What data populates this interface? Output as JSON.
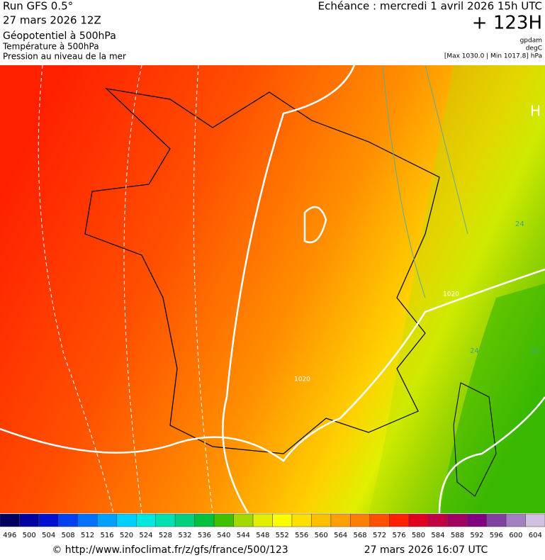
{
  "header": {
    "run": "Run GFS 0.5°",
    "run_date": "27 mars 2026 12Z",
    "field1": "Géopotentiel à 500hPa",
    "field2": "Température à 500hPa",
    "field3": "Pression au niveau de la mer",
    "echeance": "Echéance : mercredi 1 avril 2026 15h UTC",
    "lead": "+ 123H",
    "unit1": "gpdam",
    "unit2": "degC",
    "pressure_range": "[Max 1030.0 | Min 1017.8] hPa"
  },
  "map": {
    "high_label": "H",
    "contour_labels": [
      "24",
      "24",
      "32",
      "1020",
      "1020"
    ]
  },
  "colorbar": {
    "labels": [
      496,
      500,
      504,
      508,
      512,
      516,
      520,
      524,
      528,
      532,
      536,
      540,
      544,
      548,
      552,
      556,
      560,
      564,
      568,
      572,
      576,
      580,
      584,
      588,
      592,
      596,
      600,
      604
    ],
    "colors": [
      "#000060",
      "#0000a0",
      "#0010d0",
      "#0040f0",
      "#0070ff",
      "#00a0ff",
      "#00d0ff",
      "#00e8e0",
      "#00e0b0",
      "#00d080",
      "#00c040",
      "#40c000",
      "#a0d800",
      "#e0f000",
      "#ffff00",
      "#ffe000",
      "#ffc000",
      "#ffa000",
      "#ff8000",
      "#ff5000",
      "#ff2000",
      "#e00020",
      "#c00040",
      "#a00060",
      "#800080",
      "#8040a0",
      "#a080c0",
      "#d0c0e0"
    ]
  },
  "footer": {
    "url": "© http://www.infoclimat.fr/z/gfs/france/500/123",
    "timestamp": "27 mars 2026 16:07 UTC"
  }
}
